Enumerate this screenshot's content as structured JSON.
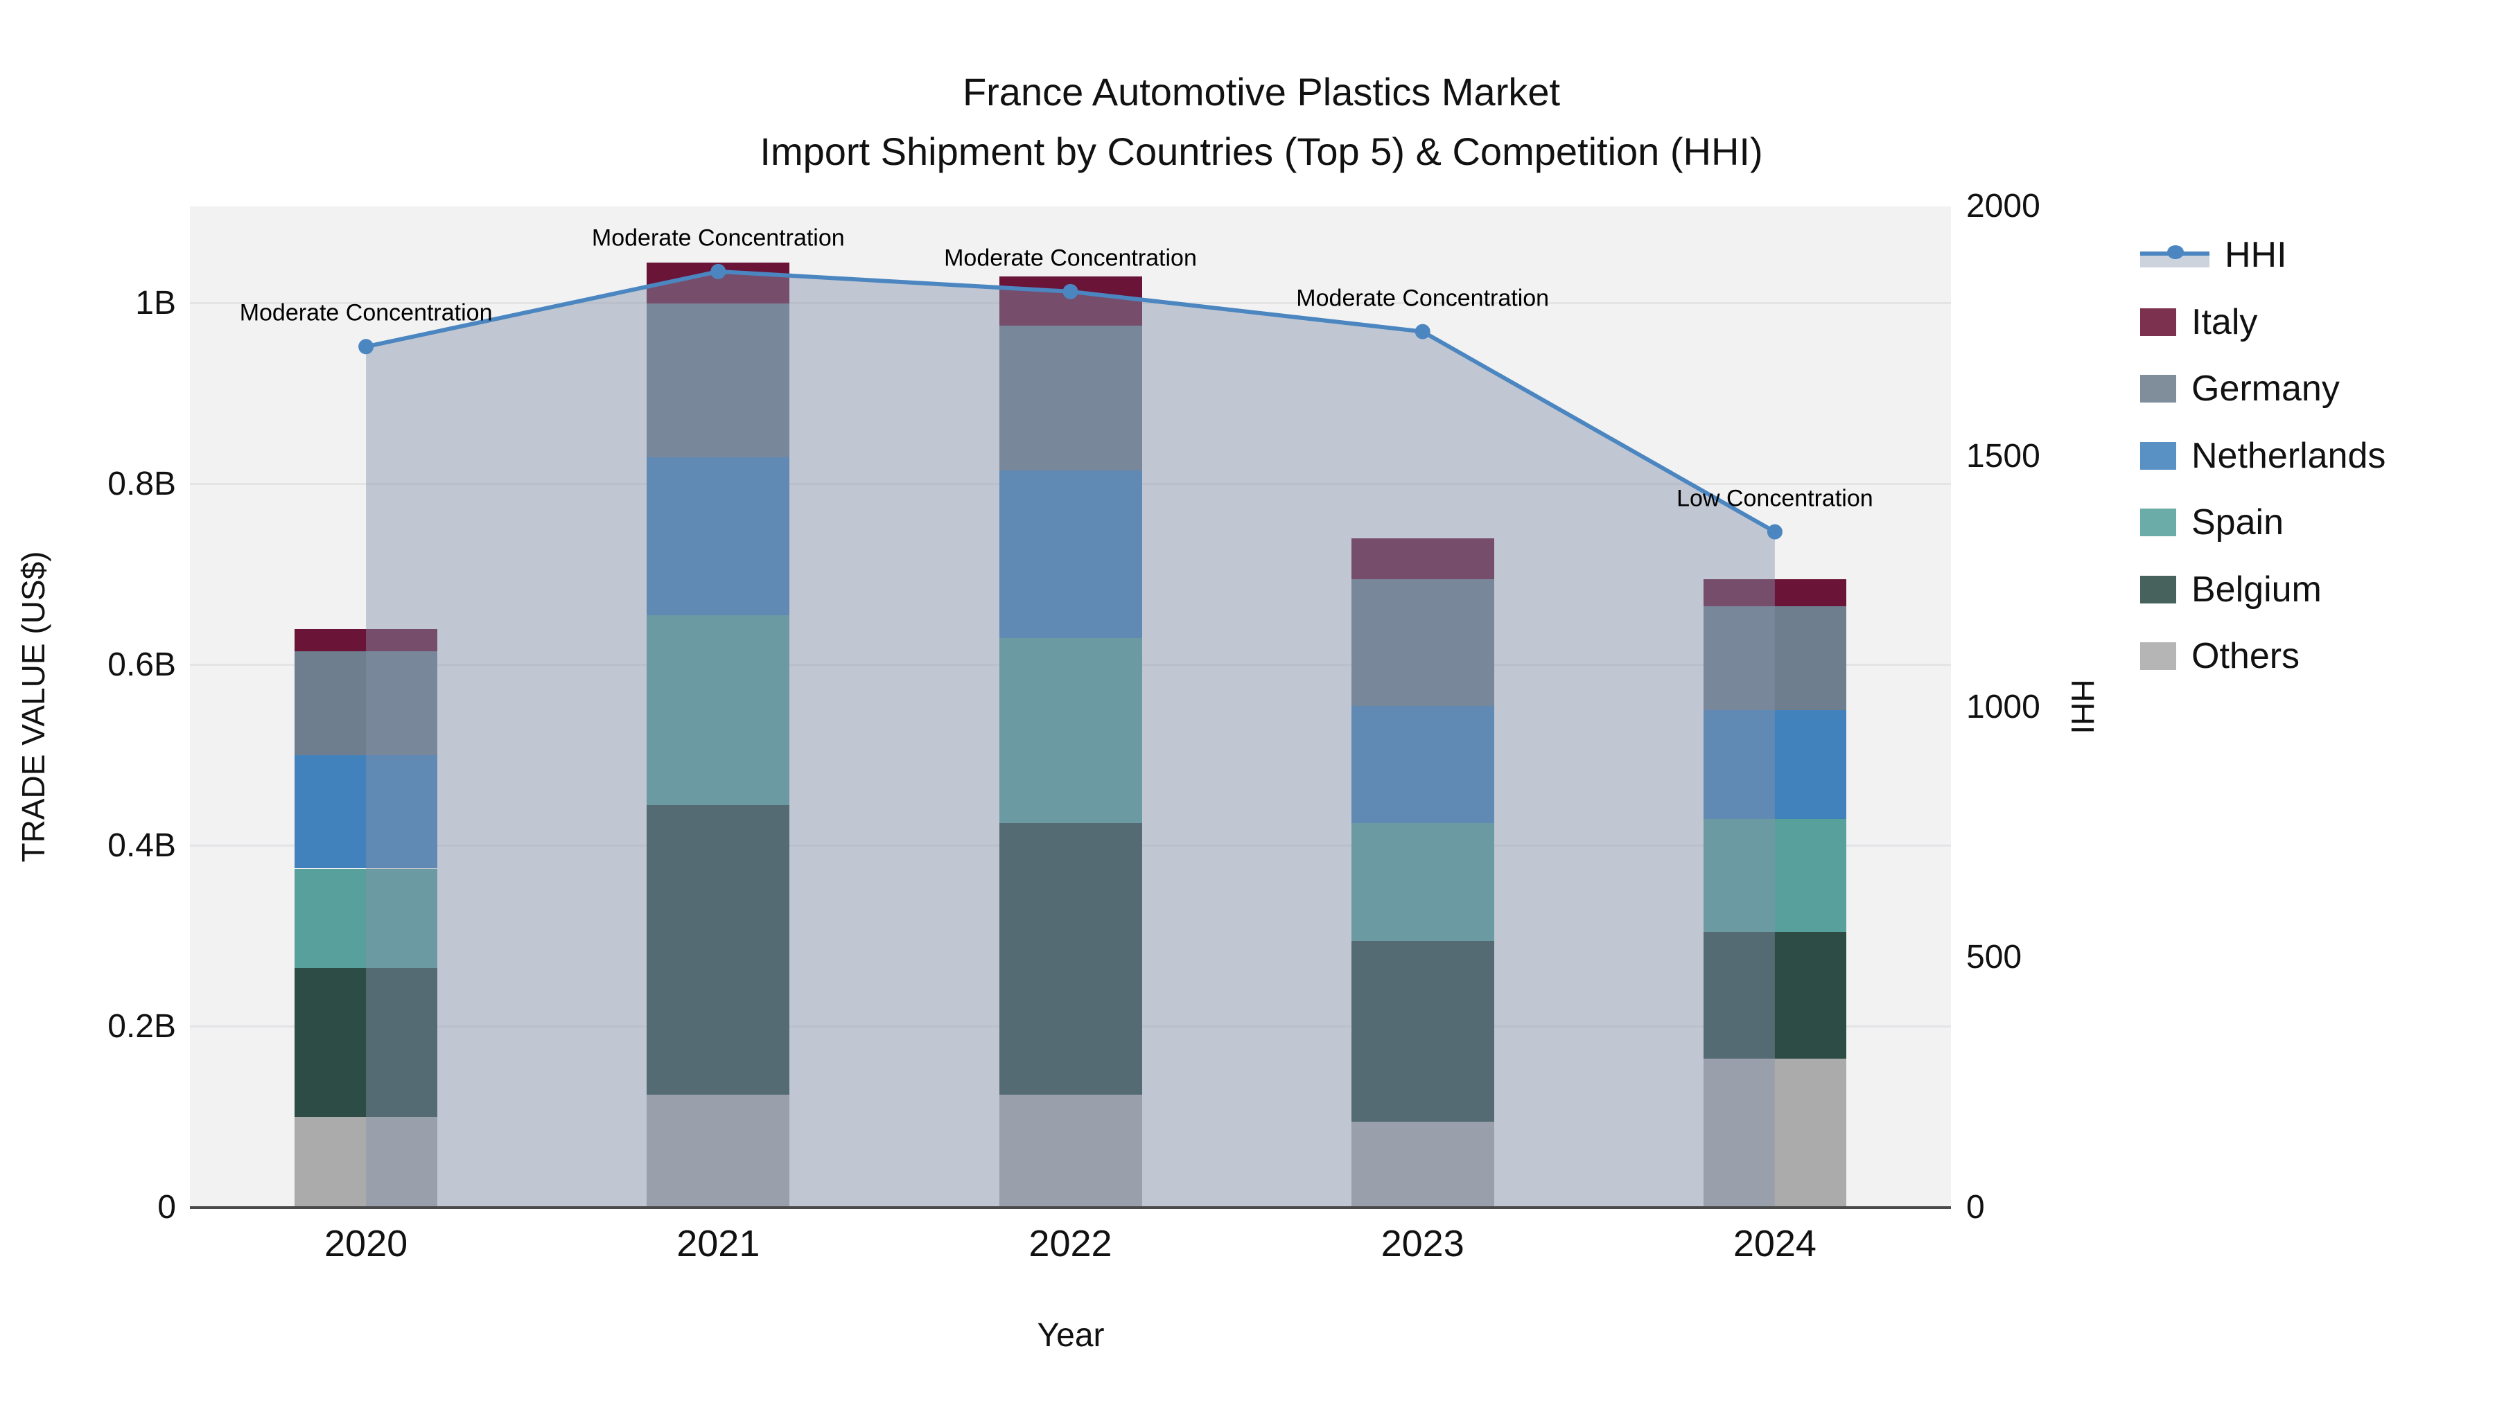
{
  "title": {
    "line1": "France Automotive Plastics Market",
    "line2": "Import Shipment by Countries (Top 5) & Competition (HHI)"
  },
  "chart_data": {
    "type": "bar",
    "subtype": "stacked-bars-with-line-overlay",
    "categories": [
      "2020",
      "2021",
      "2022",
      "2023",
      "2024"
    ],
    "xlabel": "Year",
    "series": [
      {
        "name": "Others",
        "color": "#ababab",
        "values": [
          0.1,
          0.125,
          0.125,
          0.095,
          0.165
        ]
      },
      {
        "name": "Belgium",
        "color": "#2e4c46",
        "values": [
          0.165,
          0.32,
          0.3,
          0.2,
          0.14
        ]
      },
      {
        "name": "Spain",
        "color": "#58a09c",
        "values": [
          0.11,
          0.21,
          0.205,
          0.13,
          0.125
        ]
      },
      {
        "name": "Netherlands",
        "color": "#4282bc",
        "values": [
          0.125,
          0.175,
          0.185,
          0.13,
          0.12
        ]
      },
      {
        "name": "Germany",
        "color": "#6f7e8e",
        "values": [
          0.115,
          0.17,
          0.16,
          0.14,
          0.115
        ]
      },
      {
        "name": "Italy",
        "color": "#6a1537",
        "values": [
          0.025,
          0.045,
          0.055,
          0.045,
          0.03
        ]
      }
    ],
    "bar_totals_B": [
      0.64,
      1.045,
      1.03,
      0.74,
      0.695
    ],
    "line_series": {
      "name": "HHI",
      "color": "#4b86c1",
      "area_color": "rgba(133,146,170,0.45)",
      "values": [
        1720,
        1870,
        1830,
        1750,
        1350
      ]
    },
    "annotations": [
      "Moderate Concentration",
      "Moderate Concentration",
      "Moderate Concentration",
      "Moderate Concentration",
      "Low Concentration"
    ],
    "y_left": {
      "title": "TRADE VALUE (US$)",
      "max": 1.107,
      "ticks": [
        {
          "v": 0,
          "label": "0"
        },
        {
          "v": 0.2,
          "label": "0.2B"
        },
        {
          "v": 0.4,
          "label": "0.4B"
        },
        {
          "v": 0.6,
          "label": "0.6B"
        },
        {
          "v": 0.8,
          "label": "0.8B"
        },
        {
          "v": 1.0,
          "label": "1B"
        }
      ]
    },
    "y_right": {
      "title": "HHI",
      "max": 2000,
      "ticks": [
        {
          "v": 0,
          "label": "0"
        },
        {
          "v": 500,
          "label": "500"
        },
        {
          "v": 1000,
          "label": "1000"
        },
        {
          "v": 1500,
          "label": "1500"
        },
        {
          "v": 2000,
          "label": "2000"
        }
      ]
    },
    "legend_order": [
      "HHI",
      "Italy",
      "Germany",
      "Netherlands",
      "Spain",
      "Belgium",
      "Others"
    ],
    "grid": true,
    "legend_position": "right"
  }
}
